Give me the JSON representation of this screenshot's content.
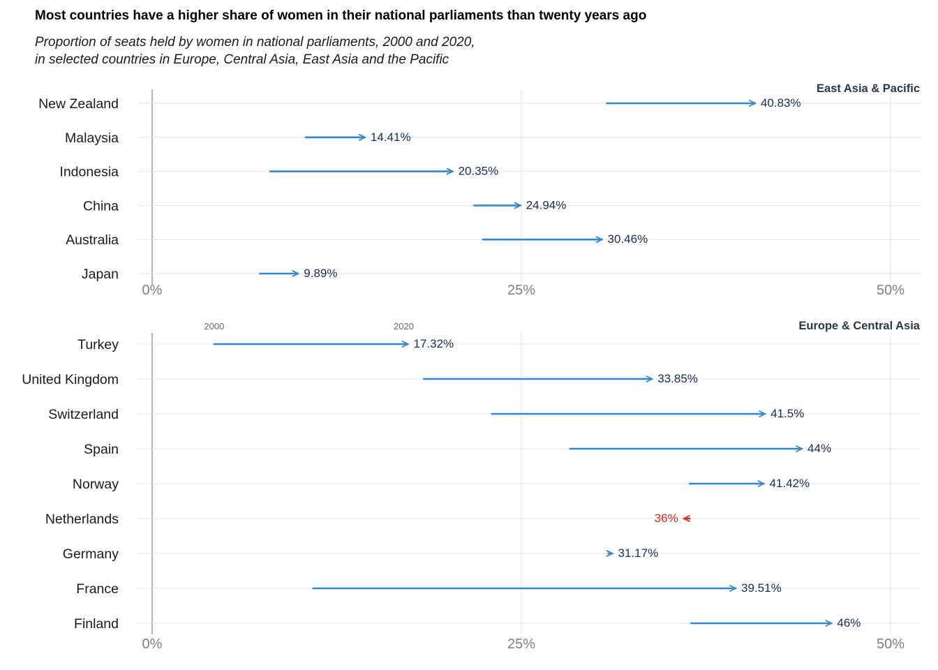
{
  "title": "Most countries have a higher share of women in their national parliaments than twenty years ago",
  "subtitle": [
    "Proportion of seats held by women in national parliaments, 2000 and 2020,",
    "in selected countries in Europe, Central Asia, East Asia and the Pacific"
  ],
  "colors": {
    "increase": "#2e86de",
    "decrease": "#e8261c",
    "value_text": "#1b2a5c",
    "grid": "#e3e3e3",
    "zero_line": "#b5b5b5"
  },
  "chart_data": [
    {
      "type": "arrow-dumbbell",
      "facet": "East Asia & Pacific",
      "x_tick_labels": [
        "0%",
        "25%",
        "50%"
      ],
      "x_ticks": [
        0,
        25,
        50
      ],
      "xlim": [
        0,
        50
      ],
      "year_labels": null,
      "rows": [
        {
          "country": "New Zealand",
          "y2000": 30.8,
          "y2020": 40.83,
          "label": "40.83%"
        },
        {
          "country": "Malaysia",
          "y2000": 10.4,
          "y2020": 14.41,
          "label": "14.41%"
        },
        {
          "country": "Indonesia",
          "y2000": 8.0,
          "y2020": 20.35,
          "label": "20.35%"
        },
        {
          "country": "China",
          "y2000": 21.8,
          "y2020": 24.94,
          "label": "24.94%"
        },
        {
          "country": "Australia",
          "y2000": 22.4,
          "y2020": 30.46,
          "label": "30.46%"
        },
        {
          "country": "Japan",
          "y2000": 7.3,
          "y2020": 9.89,
          "label": "9.89%"
        }
      ]
    },
    {
      "type": "arrow-dumbbell",
      "facet": "Europe & Central Asia",
      "x_tick_labels": [
        "0%",
        "25%",
        "50%"
      ],
      "x_ticks": [
        0,
        25,
        50
      ],
      "xlim": [
        0,
        50
      ],
      "year_labels": [
        "2000",
        "2020"
      ],
      "rows": [
        {
          "country": "Turkey",
          "y2000": 4.2,
          "y2020": 17.32,
          "label": "17.32%"
        },
        {
          "country": "United Kingdom",
          "y2000": 18.4,
          "y2020": 33.85,
          "label": "33.85%"
        },
        {
          "country": "Switzerland",
          "y2000": 23.0,
          "y2020": 41.5,
          "label": "41.5%"
        },
        {
          "country": "Spain",
          "y2000": 28.3,
          "y2020": 44,
          "label": "44%"
        },
        {
          "country": "Norway",
          "y2000": 36.4,
          "y2020": 41.42,
          "label": "41.42%"
        },
        {
          "country": "Netherlands",
          "y2000": 36.4,
          "y2020": 36,
          "label": "36%"
        },
        {
          "country": "Germany",
          "y2000": 30.9,
          "y2020": 31.17,
          "label": "31.17%"
        },
        {
          "country": "France",
          "y2000": 10.9,
          "y2020": 39.51,
          "label": "39.51%"
        },
        {
          "country": "Finland",
          "y2000": 36.5,
          "y2020": 46,
          "label": "46%"
        }
      ]
    }
  ]
}
